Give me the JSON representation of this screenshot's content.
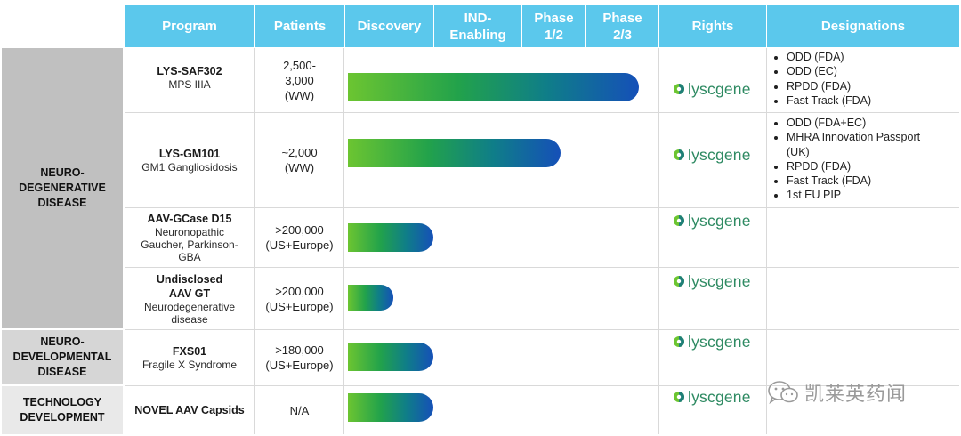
{
  "header": {
    "program": "Program",
    "patients": "Patients",
    "discovery": "Discovery",
    "ind_line1": "IND-",
    "ind_line2": "Enabling",
    "phase12_line1": "Phase",
    "phase12_line2": "1/2",
    "phase23_line1": "Phase",
    "phase23_line2": "2/3",
    "rights": "Rights",
    "designations": "Designations"
  },
  "categories": {
    "neuro_degenerative": [
      "NEURO-",
      "DEGENERATIVE",
      "DISEASE"
    ],
    "neuro_developmental": [
      "NEURO-",
      "DEVELOPMENTAL",
      "DISEASE"
    ],
    "technology": [
      "TECHNOLOGY",
      "DEVELOPMENT"
    ]
  },
  "programs": [
    {
      "name": "LYS-SAF302",
      "indication": [
        "MPS IIIA"
      ],
      "patients": [
        "2,500-",
        "3,000",
        "(WW)"
      ],
      "progress_stage": "Phase 2/3",
      "rights": "lyscgene",
      "designations": [
        "ODD (FDA)",
        "ODD (EC)",
        "RPDD (FDA)",
        "Fast Track (FDA)"
      ]
    },
    {
      "name": "LYS-GM101",
      "indication": [
        "GM1 Gangliosidosis"
      ],
      "patients": [
        "~2,000",
        "(WW)"
      ],
      "progress_stage": "Phase 1/2",
      "rights": "lyscgene",
      "designations": [
        "ODD (FDA+EC)",
        "MHRA Innovation Passport",
        "(UK)",
        "RPDD (FDA)",
        "Fast Track (FDA)",
        "1st EU PIP"
      ]
    },
    {
      "name": "AAV-GCase D15",
      "indication": [
        "Neuronopathic",
        "Gaucher, Parkinson-",
        "GBA"
      ],
      "patients": [
        ">200,000",
        "(US+Europe)"
      ],
      "progress_stage": "Discovery",
      "rights": "lyscgene",
      "designations": []
    },
    {
      "name": "Undisclosed",
      "name2": "AAV GT",
      "indication": [
        "Neurodegenerative",
        "disease"
      ],
      "patients": [
        ">200,000",
        "(US+Europe)"
      ],
      "progress_stage": "Discovery",
      "rights": "lyscgene",
      "designations": []
    },
    {
      "name": "FXS01",
      "indication": [
        "Fragile X Syndrome"
      ],
      "patients": [
        ">180,000",
        "(US+Europe)"
      ],
      "progress_stage": "Discovery",
      "rights": "lyscgene",
      "designations": []
    },
    {
      "name": "NOVEL AAV Capsids",
      "indication": [],
      "patients": [
        "N/A"
      ],
      "progress_stage": "Discovery",
      "rights": "lyscgene",
      "designations": []
    }
  ],
  "watermark": "凯莱英药闻",
  "colors": {
    "header_bg": "#5bc8ec",
    "category_bg": "#c0c0c0",
    "bar_start": "#6cc531",
    "bar_end": "#1550b8",
    "logo_text": "#2e8a62"
  },
  "icons": [
    "lyscgene-logo-icon",
    "wechat-icon"
  ]
}
